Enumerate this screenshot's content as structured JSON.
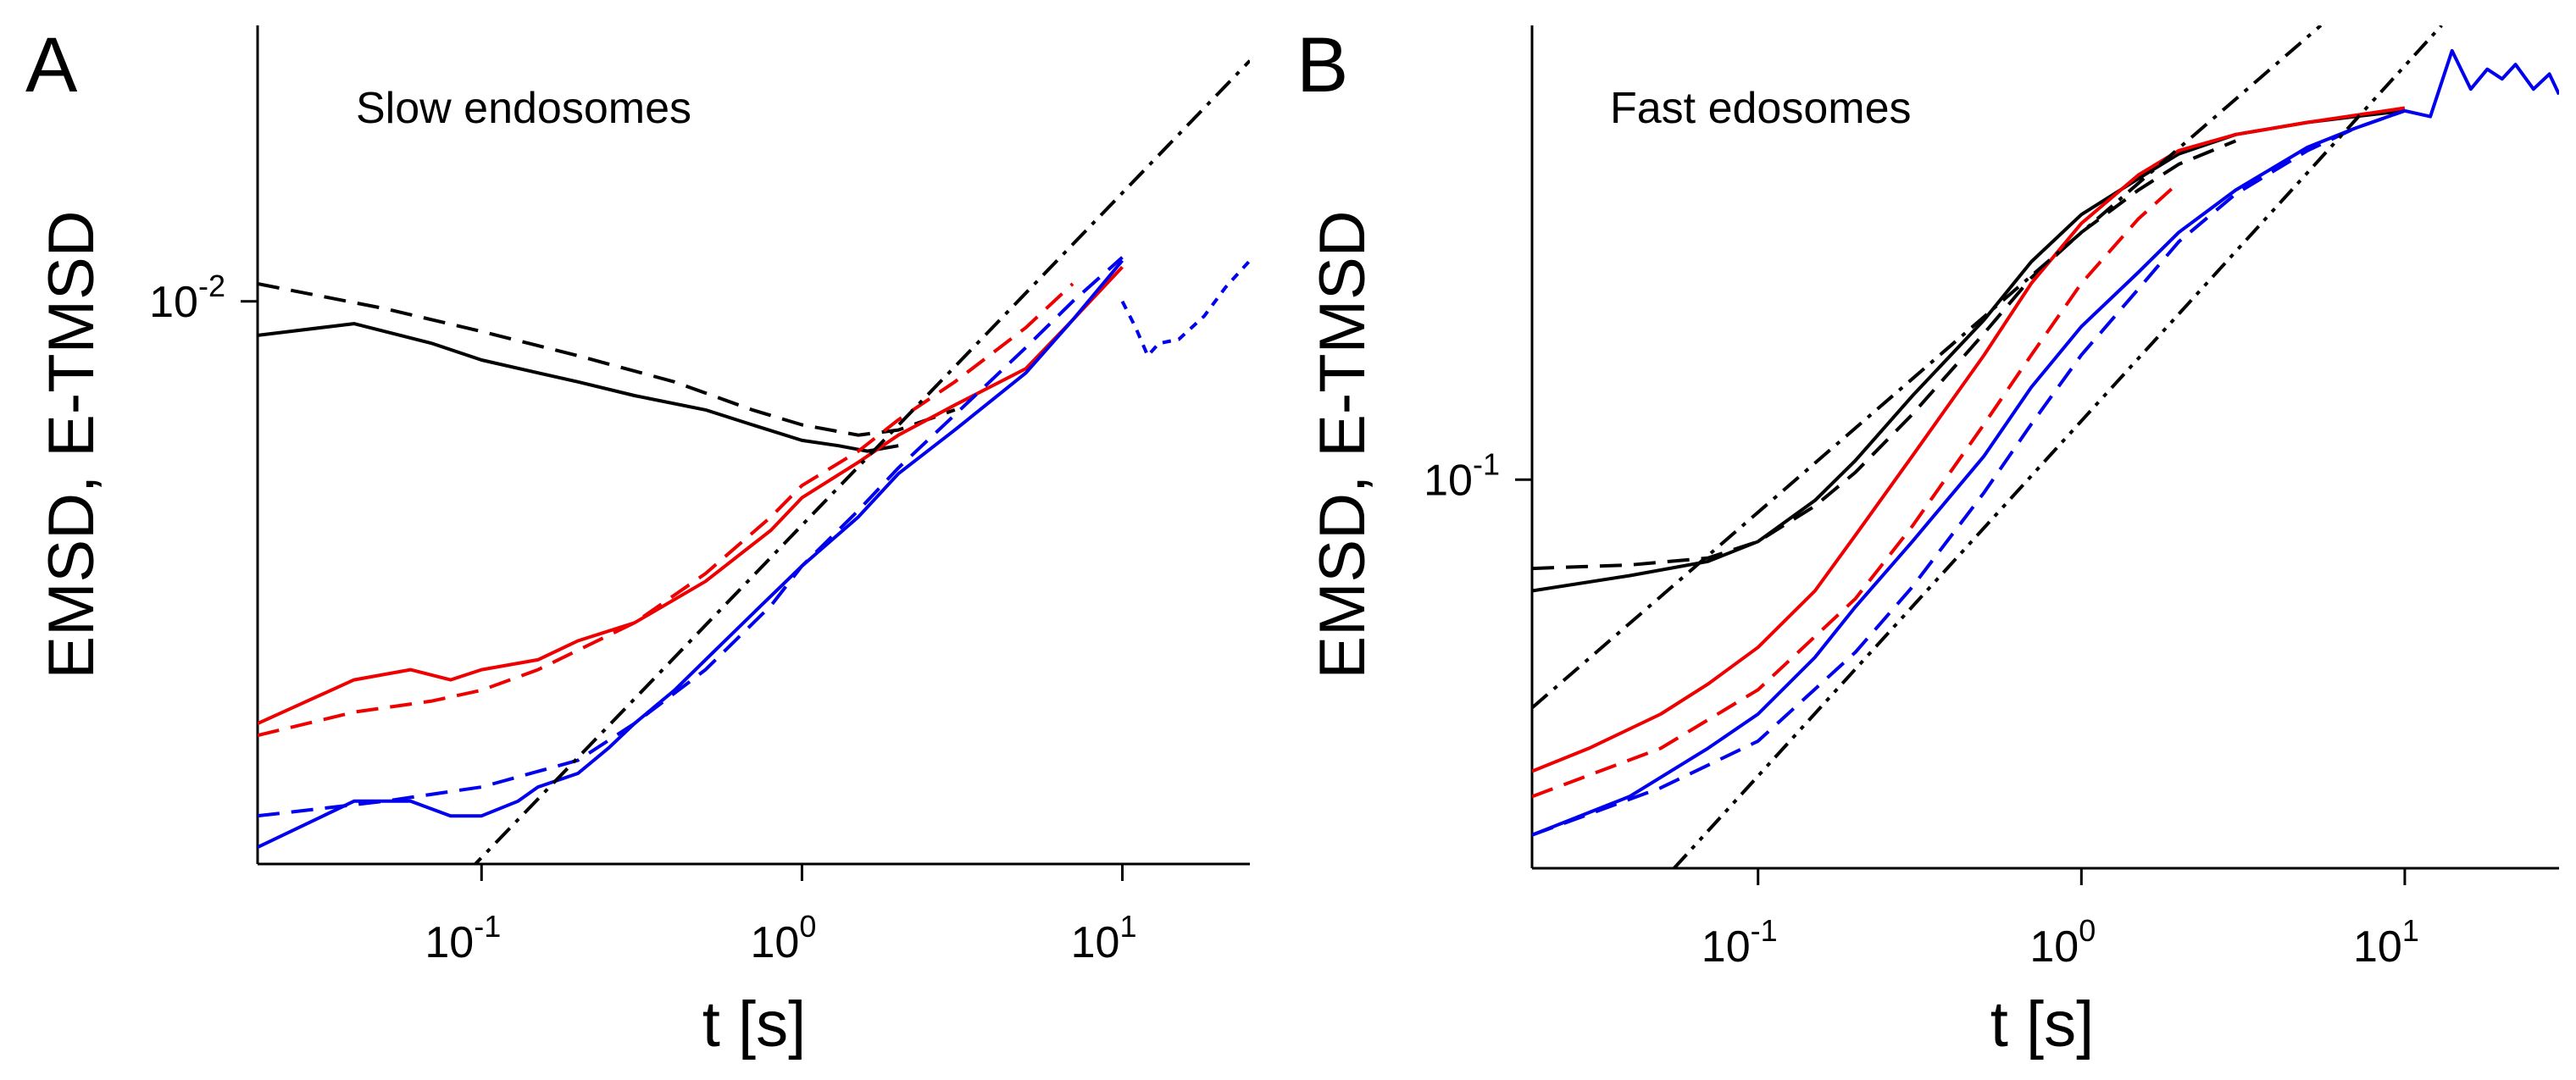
{
  "chart_data": [
    {
      "type": "line",
      "panel": "A",
      "title": "Slow endosomes",
      "xlabel": "t [s]",
      "ylabel": "EMSD, E-TMSD",
      "xscale": "log",
      "yscale": "log",
      "xlim": [
        0.02,
        25
      ],
      "ylim": [
        0.0021,
        0.0215
      ],
      "x_ticks": [
        {
          "value": 0.1,
          "base": "10",
          "exp": "-1"
        },
        {
          "value": 1,
          "base": "10",
          "exp": "0"
        },
        {
          "value": 10,
          "base": "10",
          "exp": "1"
        }
      ],
      "y_ticks": [
        {
          "value": 0.01,
          "base": "10",
          "exp": "-2"
        }
      ],
      "series": [
        {
          "name": "black EMSD",
          "color": "#000000",
          "dash": "solid",
          "x": [
            0.02,
            0.04,
            0.07,
            0.1,
            0.15,
            0.2,
            0.3,
            0.5,
            0.7,
            1.0,
            1.3,
            1.6,
            2.0
          ],
          "y": [
            0.0091,
            0.0094,
            0.0089,
            0.0085,
            0.0082,
            0.008,
            0.0077,
            0.0074,
            0.0071,
            0.0068,
            0.0067,
            0.0066,
            0.0067
          ]
        },
        {
          "name": "black E-TMSD",
          "color": "#000000",
          "dash": "dashed",
          "x": [
            0.02,
            0.05,
            0.1,
            0.2,
            0.4,
            0.7,
            1.0,
            1.5,
            2.0,
            3.0
          ],
          "y": [
            0.0105,
            0.0098,
            0.0092,
            0.0086,
            0.008,
            0.0074,
            0.0071,
            0.0069,
            0.007,
            0.0074
          ]
        },
        {
          "name": "red EMSD",
          "color": "#ee0000",
          "dash": "solid",
          "x": [
            0.02,
            0.04,
            0.06,
            0.08,
            0.1,
            0.15,
            0.2,
            0.3,
            0.5,
            0.8,
            1.0,
            1.5,
            2.0,
            3.0,
            5.0,
            7.0,
            10.0
          ],
          "y": [
            0.0031,
            0.0035,
            0.0036,
            0.0035,
            0.0036,
            0.0037,
            0.0039,
            0.0041,
            0.0046,
            0.0053,
            0.0058,
            0.0064,
            0.0069,
            0.0075,
            0.0083,
            0.0095,
            0.011
          ]
        },
        {
          "name": "red E-TMSD",
          "color": "#ee0000",
          "dash": "dashed",
          "x": [
            0.02,
            0.04,
            0.07,
            0.1,
            0.15,
            0.2,
            0.3,
            0.5,
            0.8,
            1.0,
            1.5,
            2.0,
            3.0,
            5.0,
            7.0
          ],
          "y": [
            0.003,
            0.0032,
            0.0033,
            0.0034,
            0.0036,
            0.0038,
            0.0041,
            0.0047,
            0.0055,
            0.006,
            0.0066,
            0.0072,
            0.008,
            0.0093,
            0.0105
          ]
        },
        {
          "name": "blue EMSD",
          "color": "#0000ee",
          "dash": "solid",
          "x": [
            0.02,
            0.04,
            0.06,
            0.08,
            0.1,
            0.13,
            0.15,
            0.2,
            0.25,
            0.3,
            0.4,
            0.5,
            0.7,
            1.0,
            1.5,
            2.0,
            3.0,
            5.0,
            7.0,
            10.0
          ],
          "y": [
            0.0022,
            0.0025,
            0.0025,
            0.0024,
            0.0024,
            0.0025,
            0.0026,
            0.0027,
            0.0029,
            0.0031,
            0.0034,
            0.0037,
            0.0042,
            0.0048,
            0.0055,
            0.0062,
            0.007,
            0.0082,
            0.0095,
            0.0112
          ]
        },
        {
          "name": "blue E-TMSD",
          "color": "#0000ee",
          "dash": "dashed",
          "x": [
            0.02,
            0.05,
            0.1,
            0.2,
            0.3,
            0.5,
            0.8,
            1.0,
            1.5,
            2.0,
            3.0,
            5.0,
            7.0,
            10.0
          ],
          "y": [
            0.0024,
            0.0025,
            0.0026,
            0.0028,
            0.0031,
            0.0036,
            0.0043,
            0.0048,
            0.0056,
            0.0063,
            0.0073,
            0.0088,
            0.01,
            0.0113
          ]
        },
        {
          "name": "blue E-TMSD tail",
          "color": "#0000ee",
          "dash": "dotted",
          "x": [
            10.0,
            11.0,
            12.0,
            13.0,
            15.0,
            18.0,
            21.0,
            25.0
          ],
          "y": [
            0.01,
            0.0093,
            0.0086,
            0.0089,
            0.009,
            0.0096,
            0.0104,
            0.0112
          ]
        },
        {
          "name": "guide line",
          "color": "#000000",
          "dash": "dashdot",
          "x": [
            0.09,
            25.0
          ],
          "y": [
            0.00205,
            0.0195
          ]
        }
      ]
    },
    {
      "type": "line",
      "panel": "B",
      "title": "Fast edosomes",
      "xlabel": "t [s]",
      "ylabel": "EMSD, E-TMSD",
      "xscale": "log",
      "yscale": "log",
      "xlim": [
        0.02,
        30
      ],
      "ylim": [
        0.021,
        0.62
      ],
      "x_ticks": [
        {
          "value": 0.1,
          "base": "10",
          "exp": "-1"
        },
        {
          "value": 1,
          "base": "10",
          "exp": "0"
        },
        {
          "value": 10,
          "base": "10",
          "exp": "1"
        }
      ],
      "y_ticks": [
        {
          "value": 0.1,
          "base": "10",
          "exp": "-1"
        }
      ],
      "series": [
        {
          "name": "black EMSD",
          "color": "#000000",
          "dash": "solid",
          "x": [
            0.02,
            0.04,
            0.07,
            0.1,
            0.15,
            0.2,
            0.3,
            0.5,
            0.7,
            1.0,
            1.5,
            2.0,
            3.0,
            5.0,
            7.0,
            10.0
          ],
          "y": [
            0.064,
            0.068,
            0.072,
            0.078,
            0.092,
            0.108,
            0.14,
            0.19,
            0.24,
            0.29,
            0.335,
            0.37,
            0.4,
            0.42,
            0.43,
            0.44
          ]
        },
        {
          "name": "black E-TMSD",
          "color": "#000000",
          "dash": "dashed",
          "x": [
            0.02,
            0.04,
            0.07,
            0.1,
            0.15,
            0.2,
            0.3,
            0.5,
            0.7,
            1.0,
            1.5,
            2.0,
            3.0
          ],
          "y": [
            0.07,
            0.071,
            0.073,
            0.078,
            0.09,
            0.103,
            0.13,
            0.18,
            0.225,
            0.27,
            0.32,
            0.355,
            0.39
          ]
        },
        {
          "name": "red EMSD",
          "color": "#ee0000",
          "dash": "solid",
          "x": [
            0.02,
            0.03,
            0.05,
            0.07,
            0.1,
            0.15,
            0.2,
            0.3,
            0.5,
            0.7,
            1.0,
            1.5,
            2.0,
            3.0,
            5.0,
            7.0,
            10.0
          ],
          "y": [
            0.031,
            0.034,
            0.039,
            0.044,
            0.051,
            0.064,
            0.08,
            0.11,
            0.165,
            0.22,
            0.28,
            0.34,
            0.375,
            0.4,
            0.42,
            0.432,
            0.445
          ]
        },
        {
          "name": "red E-TMSD",
          "color": "#ee0000",
          "dash": "dashed",
          "x": [
            0.02,
            0.05,
            0.1,
            0.2,
            0.3,
            0.5,
            0.7,
            1.0,
            1.5,
            2.0
          ],
          "y": [
            0.028,
            0.034,
            0.043,
            0.062,
            0.083,
            0.125,
            0.165,
            0.22,
            0.285,
            0.33
          ]
        },
        {
          "name": "blue EMSD",
          "color": "#0000ee",
          "dash": "solid",
          "x": [
            0.02,
            0.04,
            0.07,
            0.1,
            0.15,
            0.2,
            0.3,
            0.5,
            0.7,
            1.0,
            1.5,
            2.0,
            3.0,
            5.0,
            7.0,
            10.0,
            12.0,
            14.0,
            16.0,
            18.0,
            20.0,
            22.0,
            25.0,
            28.0,
            30.0
          ],
          "y": [
            0.024,
            0.028,
            0.034,
            0.039,
            0.049,
            0.06,
            0.078,
            0.11,
            0.145,
            0.185,
            0.23,
            0.27,
            0.32,
            0.38,
            0.41,
            0.44,
            0.43,
            0.56,
            0.48,
            0.52,
            0.5,
            0.53,
            0.48,
            0.51,
            0.47
          ]
        },
        {
          "name": "blue E-TMSD",
          "color": "#0000ee",
          "dash": "dashed",
          "x": [
            0.02,
            0.05,
            0.1,
            0.2,
            0.3,
            0.5,
            0.7,
            1.0,
            1.5,
            2.0,
            3.0,
            5.0,
            7.0,
            10.0
          ],
          "y": [
            0.024,
            0.029,
            0.035,
            0.05,
            0.065,
            0.095,
            0.125,
            0.165,
            0.215,
            0.26,
            0.315,
            0.375,
            0.41,
            0.44
          ]
        },
        {
          "name": "guide line upper",
          "color": "#000000",
          "dash": "dashdot",
          "x": [
            0.02,
            5.5
          ],
          "y": [
            0.04,
            0.62
          ]
        },
        {
          "name": "guide line lower",
          "color": "#000000",
          "dash": "dashdotdot",
          "x": [
            0.055,
            13.0
          ],
          "y": [
            0.021,
            0.62
          ]
        }
      ]
    }
  ]
}
